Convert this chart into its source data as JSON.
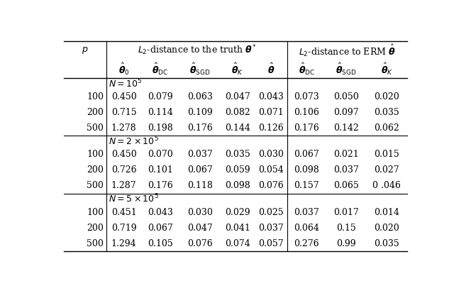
{
  "sections": [
    {
      "section_label": "N = 10^5",
      "rows": [
        {
          "p": "100",
          "vals": [
            "0.450",
            "0.079",
            "0.063",
            "0.047",
            "0.043",
            "0.073",
            "0.050",
            "0.020"
          ]
        },
        {
          "p": "200",
          "vals": [
            "0.715",
            "0.114",
            "0.109",
            "0.082",
            "0.071",
            "0.106",
            "0.097",
            "0.035"
          ]
        },
        {
          "p": "500",
          "vals": [
            "1.278",
            "0.198",
            "0.176",
            "0.144",
            "0.126",
            "0.176",
            "0.142",
            "0.062"
          ]
        }
      ]
    },
    {
      "section_label": "N = 2 x 10^5",
      "rows": [
        {
          "p": "100",
          "vals": [
            "0.450",
            "0.070",
            "0.037",
            "0.035",
            "0.030",
            "0.067",
            "0.021",
            "0.015"
          ]
        },
        {
          "p": "200",
          "vals": [
            "0.726",
            "0.101",
            "0.067",
            "0.059",
            "0.054",
            "0.098",
            "0.037",
            "0.027"
          ]
        },
        {
          "p": "500",
          "vals": [
            "1.287",
            "0.176",
            "0.118",
            "0.098",
            "0.076",
            "0.157",
            "0.065",
            "0 .046"
          ]
        }
      ]
    },
    {
      "section_label": "N = 5 x 10^5",
      "rows": [
        {
          "p": "100",
          "vals": [
            "0.451",
            "0.043",
            "0.030",
            "0.029",
            "0.025",
            "0.037",
            "0.017",
            "0.014"
          ]
        },
        {
          "p": "200",
          "vals": [
            "0.719",
            "0.067",
            "0.047",
            "0.041",
            "0.037",
            "0.064",
            "0.15",
            "0.020"
          ]
        },
        {
          "p": "500",
          "vals": [
            "1.294",
            "0.105",
            "0.076",
            "0.074",
            "0.057",
            "0.276",
            "0.99",
            "0.035"
          ]
        }
      ]
    }
  ],
  "col_labels_row2": [
    "\\hat{\\boldsymbol{\\theta}}_0",
    "\\hat{\\boldsymbol{\\theta}}_{\\mathrm{DC}}",
    "\\hat{\\boldsymbol{\\theta}}_{\\mathrm{SGD}}",
    "\\hat{\\boldsymbol{\\theta}}_K",
    "\\hat{\\boldsymbol{\\theta}}",
    "\\hat{\\boldsymbol{\\theta}}_{\\mathrm{DC}}",
    "\\hat{\\boldsymbol{\\theta}}_{\\mathrm{SGD}}",
    "\\hat{\\boldsymbol{\\theta}}_K"
  ],
  "section_math_labels": [
    "N = 10^5",
    "N = 2 \\times 10^5",
    "N = 5 \\times 10^5"
  ],
  "bg_color": "#ffffff",
  "text_color": "#000000",
  "fontsize": 9.0,
  "header_fontsize": 9.0
}
